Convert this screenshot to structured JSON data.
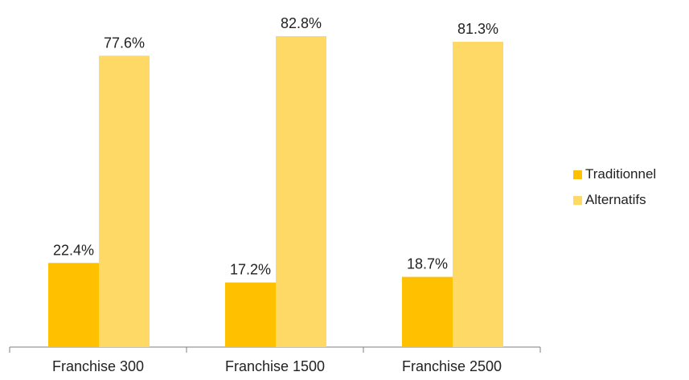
{
  "chart_data": {
    "type": "bar",
    "categories": [
      "Franchise 300",
      "Franchise 1500",
      "Franchise 2500"
    ],
    "series": [
      {
        "name": "Traditionnel",
        "values": [
          22.4,
          17.2,
          18.7
        ],
        "labels": [
          "22.4%",
          "17.2%",
          "18.7%"
        ],
        "color": "#FFC000"
      },
      {
        "name": "Alternatifs",
        "values": [
          77.6,
          82.8,
          81.3
        ],
        "labels": [
          "77.6%",
          "82.8%",
          "81.3%"
        ],
        "color": "#FFD966"
      }
    ],
    "ylim": [
      0,
      100
    ],
    "grid": false,
    "legend_position": "right"
  }
}
